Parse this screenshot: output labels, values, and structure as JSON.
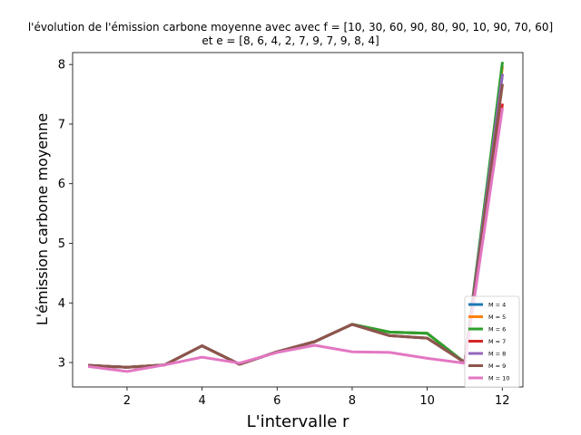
{
  "chart_data": {
    "type": "line",
    "title_line1": "l'évolution de l'émission carbone moyenne avec avec f = [10, 30, 60, 90, 80, 90, 10, 90, 70, 60]",
    "title_line2": "et e = [8, 6, 4, 2, 7, 9, 7, 9, 8, 4]",
    "xlabel": "L'intervalle r",
    "ylabel": "L'émission carbone moyenne",
    "x": [
      1,
      2,
      3,
      4,
      5,
      6,
      7,
      8,
      9,
      10,
      11,
      12
    ],
    "xlim": [
      0.55,
      12.55
    ],
    "ylim": [
      2.59,
      8.2
    ],
    "xticks": [
      2,
      4,
      6,
      8,
      10,
      12
    ],
    "yticks": [
      3,
      4,
      5,
      6,
      7,
      8
    ],
    "grid": false,
    "legend_position": "bottom-right",
    "series": [
      {
        "name": "M = 4",
        "color": "#1f77b4",
        "values": [
          2.95,
          2.92,
          2.96,
          3.28,
          2.97,
          3.18,
          3.35,
          3.64,
          3.51,
          3.49,
          3.0,
          7.82
        ]
      },
      {
        "name": "M = 5",
        "color": "#ff7f0e",
        "values": [
          2.95,
          2.92,
          2.96,
          3.28,
          2.97,
          3.18,
          3.35,
          3.64,
          3.51,
          3.49,
          3.0,
          7.95
        ]
      },
      {
        "name": "M = 6",
        "color": "#2ca02c",
        "values": [
          2.95,
          2.92,
          2.96,
          3.28,
          2.97,
          3.18,
          3.35,
          3.64,
          3.51,
          3.49,
          3.0,
          8.02
        ]
      },
      {
        "name": "M = 7",
        "color": "#d62728",
        "values": [
          2.95,
          2.92,
          2.96,
          3.28,
          2.97,
          3.18,
          3.35,
          3.64,
          3.45,
          3.41,
          3.0,
          7.32
        ]
      },
      {
        "name": "M = 8",
        "color": "#9467bd",
        "values": [
          2.95,
          2.92,
          2.96,
          3.28,
          2.97,
          3.18,
          3.35,
          3.64,
          3.45,
          3.41,
          3.0,
          7.82
        ]
      },
      {
        "name": "M = 9",
        "color": "#8c564b",
        "values": [
          2.95,
          2.92,
          2.96,
          3.28,
          2.97,
          3.18,
          3.35,
          3.64,
          3.45,
          3.41,
          3.0,
          7.65
        ]
      },
      {
        "name": "M = 10",
        "color": "#e377c2",
        "values": [
          2.93,
          2.85,
          2.96,
          3.09,
          2.99,
          3.17,
          3.29,
          3.18,
          3.17,
          3.07,
          2.99,
          7.25
        ]
      }
    ]
  }
}
